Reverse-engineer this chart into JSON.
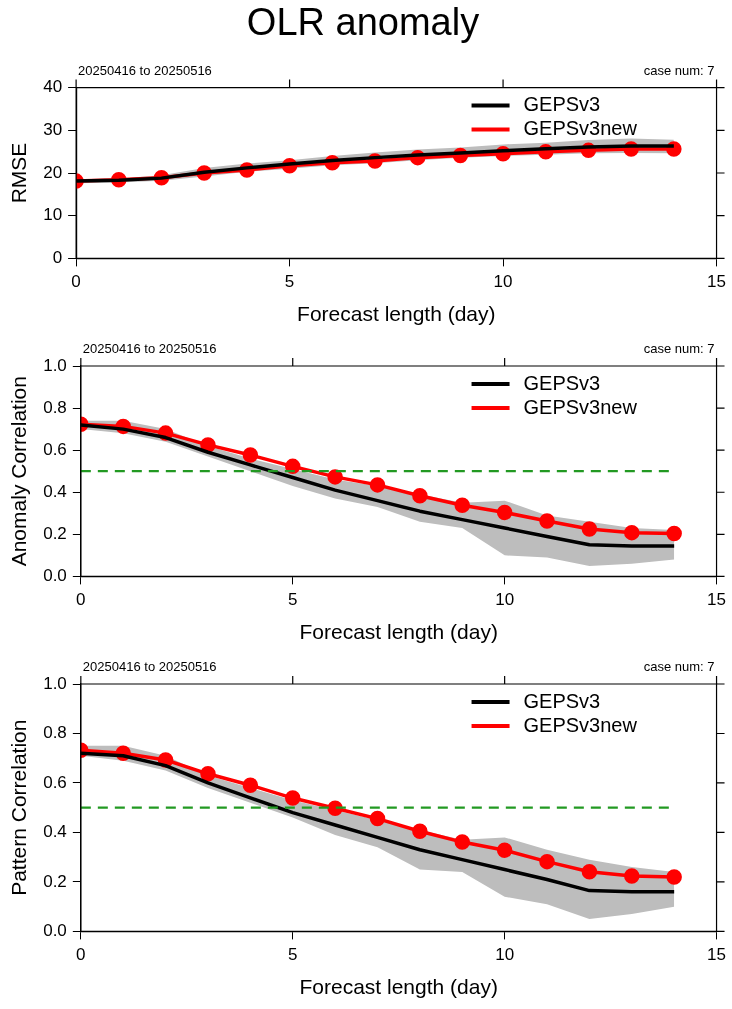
{
  "chart_data": [
    {
      "type": "line",
      "title": "OLR anomaly",
      "xlabel": "Forecast length (day)",
      "ylabel": "RMSE",
      "annotations": [
        "20250416 to 20250516",
        "case num: 7"
      ],
      "x": [
        0,
        1,
        2,
        3,
        4,
        5,
        6,
        7,
        8,
        9,
        10,
        11,
        12,
        13,
        14
      ],
      "xlim": [
        0,
        15
      ],
      "xticks": [
        0,
        5,
        10,
        15
      ],
      "ylim": [
        0,
        40
      ],
      "yticks": [
        0,
        10,
        20,
        30,
        40
      ],
      "grid": false,
      "legend": "top right",
      "line_style": "solid",
      "series": [
        {
          "name": "GEPSv3",
          "color": "#000000",
          "marker": "none",
          "values": [
            18.1,
            18.3,
            18.8,
            20.2,
            21.2,
            22.1,
            22.9,
            23.6,
            24.2,
            24.7,
            25.2,
            25.7,
            26.1,
            26.3,
            26.3
          ],
          "lower": [
            17.6,
            17.8,
            18.2,
            19.2,
            20.3,
            21,
            21.8,
            22.3,
            23,
            23.6,
            24,
            24.3,
            24.6,
            24.7,
            24.6
          ],
          "upper": [
            18.5,
            18.7,
            19.5,
            21.2,
            22.2,
            23,
            24,
            24.8,
            25.5,
            26,
            26.7,
            27.1,
            27.7,
            28.1,
            27.8
          ]
        },
        {
          "name": "GEPSv3new",
          "color": "#ff0000",
          "marker": "circle",
          "values": [
            18.1,
            18.4,
            18.9,
            20.0,
            20.7,
            21.7,
            22.4,
            22.8,
            23.6,
            24.1,
            24.5,
            25.0,
            25.3,
            25.6,
            25.6
          ]
        }
      ]
    },
    {
      "type": "line",
      "xlabel": "Forecast length (day)",
      "ylabel": "Anomaly Correlation",
      "annotations": [
        "20250416 to 20250516",
        "case num: 7"
      ],
      "x": [
        0,
        1,
        2,
        3,
        4,
        5,
        6,
        7,
        8,
        9,
        10,
        11,
        12,
        13,
        14
      ],
      "xlim": [
        0,
        15
      ],
      "xticks": [
        0,
        5,
        10,
        15
      ],
      "ylim": [
        0,
        1
      ],
      "yticks": [
        {
          "value": 0,
          "label": "0.0"
        },
        {
          "value": 0.2,
          "label": "0.2"
        },
        {
          "value": 0.4,
          "label": "0.4"
        },
        {
          "value": 0.6,
          "label": "0.6"
        },
        {
          "value": 0.8,
          "label": "0.8"
        },
        {
          "value": 1,
          "label": "1.0"
        }
      ],
      "grid": false,
      "legend": "top right",
      "line_style": "solid",
      "ref_lines": [
        {
          "axis": "y",
          "value": 0.5,
          "color": "#229922",
          "line_style": "dashed"
        }
      ],
      "series": [
        {
          "name": "GEPSv3",
          "color": "#000000",
          "marker": "none",
          "values": [
            0.72,
            0.7,
            0.66,
            0.59,
            0.53,
            0.47,
            0.41,
            0.36,
            0.31,
            0.27,
            0.23,
            0.19,
            0.15,
            0.145,
            0.145
          ],
          "lower": [
            0.7,
            0.68,
            0.64,
            0.57,
            0.5,
            0.43,
            0.37,
            0.33,
            0.26,
            0.23,
            0.1,
            0.09,
            0.05,
            0.06,
            0.08
          ],
          "upper": [
            0.74,
            0.74,
            0.7,
            0.62,
            0.56,
            0.51,
            0.46,
            0.43,
            0.39,
            0.35,
            0.36,
            0.29,
            0.26,
            0.23,
            0.22
          ]
        },
        {
          "name": "GEPSv3new",
          "color": "#ff0000",
          "marker": "circle",
          "values": [
            0.723,
            0.713,
            0.681,
            0.625,
            0.577,
            0.523,
            0.473,
            0.435,
            0.383,
            0.338,
            0.304,
            0.263,
            0.225,
            0.208,
            0.204
          ]
        }
      ]
    },
    {
      "type": "line",
      "xlabel": "Forecast length (day)",
      "ylabel": "Pattern Correlation",
      "annotations": [
        "20250416 to 20250516",
        "case num: 7"
      ],
      "x": [
        0,
        1,
        2,
        3,
        4,
        5,
        6,
        7,
        8,
        9,
        10,
        11,
        12,
        13,
        14
      ],
      "xlim": [
        0,
        15
      ],
      "xticks": [
        0,
        5,
        10,
        15
      ],
      "ylim": [
        0,
        1
      ],
      "yticks": [
        {
          "value": 0,
          "label": "0.0"
        },
        {
          "value": 0.2,
          "label": "0.2"
        },
        {
          "value": 0.4,
          "label": "0.4"
        },
        {
          "value": 0.6,
          "label": "0.6"
        },
        {
          "value": 0.8,
          "label": "0.8"
        },
        {
          "value": 1,
          "label": "1.0"
        }
      ],
      "grid": false,
      "legend": "top right",
      "line_style": "solid",
      "ref_lines": [
        {
          "axis": "y",
          "value": 0.5,
          "color": "#229922",
          "line_style": "dashed"
        }
      ],
      "series": [
        {
          "name": "GEPSv3",
          "color": "#000000",
          "marker": "none",
          "values": [
            0.72,
            0.71,
            0.67,
            0.6,
            0.54,
            0.48,
            0.43,
            0.38,
            0.33,
            0.29,
            0.25,
            0.21,
            0.165,
            0.16,
            0.16
          ],
          "lower": [
            0.71,
            0.69,
            0.65,
            0.58,
            0.52,
            0.46,
            0.39,
            0.34,
            0.25,
            0.24,
            0.14,
            0.11,
            0.05,
            0.07,
            0.1
          ],
          "upper": [
            0.75,
            0.75,
            0.71,
            0.63,
            0.58,
            0.53,
            0.49,
            0.45,
            0.41,
            0.37,
            0.38,
            0.33,
            0.29,
            0.26,
            0.24
          ]
        },
        {
          "name": "GEPSv3new",
          "color": "#ff0000",
          "marker": "circle",
          "values": [
            0.732,
            0.72,
            0.693,
            0.637,
            0.591,
            0.539,
            0.498,
            0.456,
            0.405,
            0.361,
            0.328,
            0.282,
            0.241,
            0.224,
            0.22
          ]
        }
      ]
    }
  ]
}
